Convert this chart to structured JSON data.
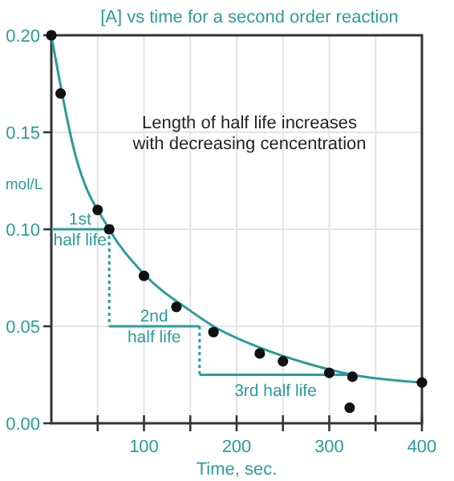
{
  "chart_data": {
    "type": "scatter",
    "title": "[A] vs time for a second order reaction",
    "xlabel": "Time, sec.",
    "ylabel": "mol/L",
    "xlim": [
      0,
      400
    ],
    "ylim": [
      0,
      0.2
    ],
    "xticks": [
      {
        "value": 50,
        "label": null
      },
      100,
      {
        "value": 150,
        "label": null
      },
      200,
      {
        "value": 250,
        "label": null
      },
      300,
      {
        "value": 350,
        "label": null
      },
      400
    ],
    "yticks": [
      {
        "value": 0,
        "label": "0.00"
      },
      {
        "value": 0.05,
        "label": "0.05"
      },
      {
        "value": 0.1,
        "label": "0.10"
      },
      {
        "value": 0.15,
        "label": "0.15"
      },
      {
        "value": 0.2,
        "label": "0.20"
      }
    ],
    "grid": true,
    "marker": "circle",
    "series": [
      {
        "type": "line",
        "color": "#2a9d9a",
        "marker": "none",
        "x": [
          0,
          25,
          62.5,
          100,
          150,
          175,
          225,
          275,
          325,
          400
        ],
        "values": [
          0.2,
          0.14,
          0.1,
          0.077,
          0.058,
          0.05,
          0.039,
          0.031,
          0.025,
          0.021
        ]
      },
      {
        "type": "line",
        "color": "#2a9d9a",
        "marker": "none",
        "x": [
          0,
          62.5
        ],
        "values": [
          0.1,
          0.1
        ]
      },
      {
        "type": "line",
        "color": "#2a9d9a",
        "marker": "none",
        "line_style": "dotted",
        "x": [
          62.5,
          62.5
        ],
        "values": [
          0.1,
          0.05
        ]
      },
      {
        "type": "line",
        "color": "#2a9d9a",
        "marker": "none",
        "x": [
          62.5,
          160
        ],
        "values": [
          0.05,
          0.05
        ]
      },
      {
        "type": "line",
        "color": "#2a9d9a",
        "marker": "none",
        "line_style": "dotted",
        "x": [
          160,
          160
        ],
        "values": [
          0.05,
          0.025
        ]
      },
      {
        "type": "line",
        "color": "#2a9d9a",
        "marker": "none",
        "x": [
          160,
          325
        ],
        "values": [
          0.025,
          0.025
        ]
      },
      {
        "type": "scatter",
        "color": "#111111",
        "x": [
          0,
          10,
          50,
          62.5,
          100,
          135,
          175,
          225,
          250,
          300,
          325,
          322,
          400
        ],
        "values": [
          0.2,
          0.17,
          0.11,
          0.1,
          0.076,
          0.06,
          0.047,
          0.036,
          0.032,
          0.026,
          0.024,
          0.008,
          0.021
        ]
      }
    ],
    "annotations": [
      {
        "text": "Length of half life increases\nwith decreasing cencentration"
      },
      {
        "text": "1st\nhalf life",
        "x": 31,
        "y": 0.1
      },
      {
        "text": "2nd\nhalf life",
        "x": 111,
        "y": 0.05
      },
      {
        "text": "3rd half life",
        "x": 242,
        "y": 0.025
      }
    ]
  }
}
